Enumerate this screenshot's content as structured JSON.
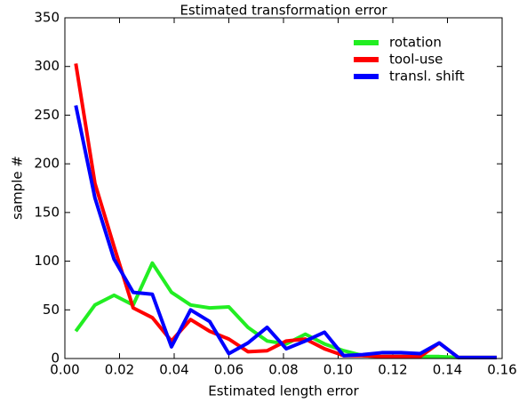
{
  "chart_data": {
    "type": "line",
    "title": "Estimated transformation error",
    "x_label": "Estimated length error",
    "y_label": "sample #",
    "x": [
      0.004,
      0.011,
      0.018,
      0.025,
      0.032,
      0.039,
      0.046,
      0.053,
      0.06,
      0.067,
      0.074,
      0.081,
      0.088,
      0.095,
      0.102,
      0.109,
      0.116,
      0.123,
      0.13,
      0.137,
      0.144,
      0.151,
      0.158
    ],
    "series": [
      {
        "name": "rotation",
        "color": "#22ee22",
        "values": [
          28,
          55,
          65,
          55,
          98,
          68,
          55,
          52,
          53,
          32,
          18,
          15,
          25,
          15,
          8,
          3,
          2,
          2,
          2,
          2,
          1,
          1,
          1
        ]
      },
      {
        "name": "tool-use",
        "color": "#ff0000",
        "values": [
          303,
          180,
          115,
          52,
          42,
          18,
          40,
          28,
          20,
          7,
          8,
          18,
          20,
          10,
          3,
          3,
          2,
          2,
          2,
          16,
          1,
          1,
          1
        ]
      },
      {
        "name": "transl. shift",
        "color": "#0000ff",
        "values": [
          260,
          165,
          102,
          68,
          66,
          12,
          50,
          38,
          5,
          16,
          32,
          10,
          18,
          27,
          3,
          4,
          6,
          6,
          5,
          16,
          1,
          1,
          1
        ]
      }
    ],
    "xlim": [
      0,
      0.16
    ],
    "xticks": [
      {
        "value": 0,
        "label": "0.00"
      },
      {
        "value": 0.02,
        "label": "0.02"
      },
      {
        "value": 0.04,
        "label": "0.04"
      },
      {
        "value": 0.06,
        "label": "0.06"
      },
      {
        "value": 0.08,
        "label": "0.08"
      },
      {
        "value": 0.1,
        "label": "0.10"
      },
      {
        "value": 0.12,
        "label": "0.12"
      },
      {
        "value": 0.14,
        "label": "0.14"
      },
      {
        "value": 0.16,
        "label": "0.16"
      }
    ],
    "ylim": [
      0,
      350
    ],
    "yticks": [
      0,
      50,
      100,
      150,
      200,
      250,
      300,
      350
    ],
    "legend": "upper right"
  }
}
